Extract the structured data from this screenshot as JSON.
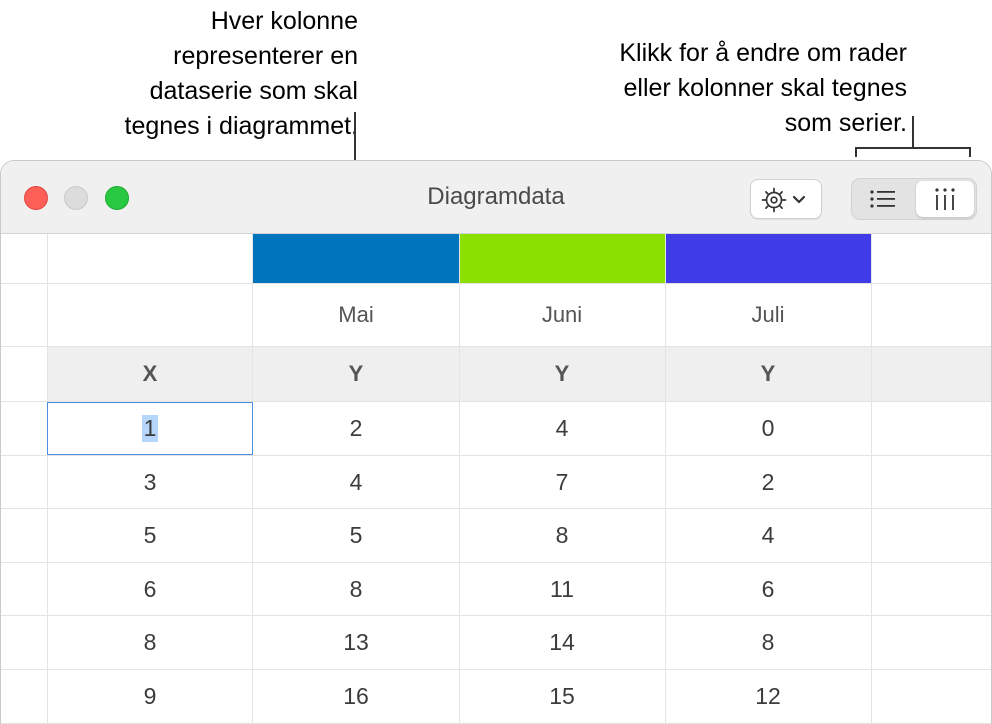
{
  "callouts": {
    "left": [
      "Hver kolonne",
      "representerer en",
      "dataserie som skal",
      "tegnes i diagrammet."
    ],
    "right": [
      "Klikk for å endre om rader",
      "eller kolonner skal tegnes",
      "som serier."
    ]
  },
  "window": {
    "title": "Diagramdata"
  },
  "toolbar": {
    "gear_icon": "gear-with-chevron-icon",
    "rows_icon": "list-rows-icon",
    "columns_icon": "columns-icon",
    "selected_mode": "columns"
  },
  "series": [
    {
      "name": "Mai",
      "color": "#0075bd"
    },
    {
      "name": "Juni",
      "color": "#8be000"
    },
    {
      "name": "Juli",
      "color": "#3f3be6"
    }
  ],
  "axis_headers": [
    "X",
    "Y",
    "Y",
    "Y"
  ],
  "rows": [
    [
      "1",
      "2",
      "4",
      "0"
    ],
    [
      "3",
      "4",
      "7",
      "2"
    ],
    [
      "5",
      "5",
      "8",
      "4"
    ],
    [
      "6",
      "8",
      "11",
      "6"
    ],
    [
      "8",
      "13",
      "14",
      "8"
    ],
    [
      "9",
      "16",
      "15",
      "12"
    ]
  ]
}
